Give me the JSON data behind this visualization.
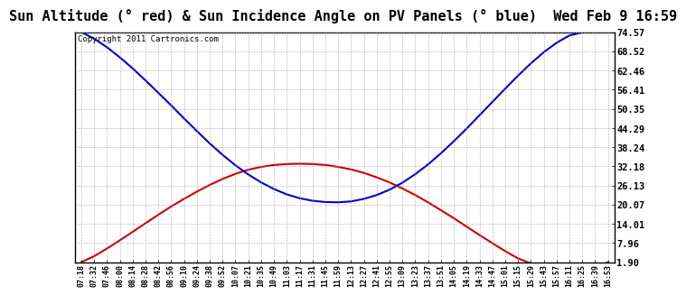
{
  "title": "Sun Altitude (° red) & Sun Incidence Angle on PV Panels (° blue)  Wed Feb 9 16:59",
  "copyright": "Copyright 2011 Cartronics.com",
  "ylabel_right_ticks": [
    1.9,
    7.96,
    14.01,
    20.07,
    26.13,
    32.18,
    38.24,
    44.29,
    50.35,
    56.41,
    62.46,
    68.52,
    74.57
  ],
  "ymin": 1.9,
  "ymax": 74.57,
  "background_color": "#ffffff",
  "grid_color": "#aaaaaa",
  "title_fontsize": 11,
  "x_labels": [
    "07:18",
    "07:32",
    "07:46",
    "08:00",
    "08:14",
    "08:28",
    "08:42",
    "08:56",
    "09:10",
    "09:24",
    "09:38",
    "09:52",
    "10:07",
    "10:21",
    "10:35",
    "10:49",
    "11:03",
    "11:17",
    "11:31",
    "11:45",
    "11:59",
    "12:13",
    "12:27",
    "12:41",
    "12:55",
    "13:09",
    "13:23",
    "13:37",
    "13:51",
    "14:05",
    "14:19",
    "14:33",
    "14:47",
    "15:01",
    "15:15",
    "15:29",
    "15:43",
    "15:57",
    "16:11",
    "16:25",
    "16:39",
    "16:53"
  ],
  "red_values": [
    1.9,
    3.8,
    6.2,
    8.8,
    11.5,
    14.2,
    16.9,
    19.5,
    21.9,
    24.2,
    26.3,
    28.2,
    29.8,
    31.1,
    32.0,
    32.6,
    32.9,
    33.0,
    32.9,
    32.6,
    32.0,
    31.2,
    30.1,
    28.7,
    27.1,
    25.2,
    23.1,
    20.8,
    18.3,
    15.8,
    13.1,
    10.5,
    7.9,
    5.4,
    3.1,
    1.5,
    0.5,
    0.2,
    0.1,
    0.1,
    0.1,
    1.9
  ],
  "blue_values": [
    74.57,
    72.5,
    69.8,
    66.6,
    63.1,
    59.3,
    55.4,
    51.4,
    47.3,
    43.3,
    39.4,
    35.8,
    32.5,
    29.6,
    27.1,
    25.0,
    23.3,
    22.1,
    21.3,
    20.9,
    20.8,
    21.1,
    21.9,
    23.1,
    24.8,
    27.0,
    29.7,
    32.8,
    36.3,
    40.1,
    44.1,
    48.3,
    52.5,
    56.7,
    60.8,
    64.7,
    68.2,
    71.2,
    73.5,
    74.5,
    75.0,
    74.57
  ],
  "red_color": "#cc0000",
  "blue_color": "#0000cc",
  "line_width": 1.5
}
